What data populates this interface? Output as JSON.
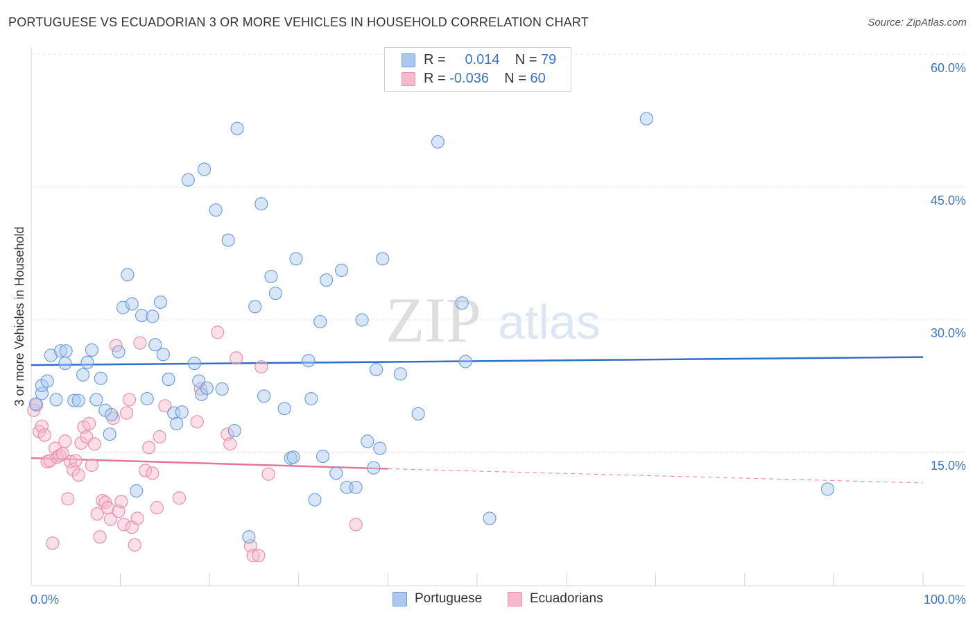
{
  "title": "PORTUGUESE VS ECUADORIAN 3 OR MORE VEHICLES IN HOUSEHOLD CORRELATION CHART",
  "source": "Source: ZipAtlas.com",
  "watermark": {
    "zip": "ZIP",
    "atlas": "atlas"
  },
  "colors": {
    "portuguese_fill": "#a9c7ef",
    "portuguese_stroke": "#6f9fdc",
    "portuguese_line": "#2f6fcc",
    "ecuadorian_fill": "#f6b8cc",
    "ecuadorian_stroke": "#ea8fac",
    "ecuadorian_line": "#e8739b",
    "axis_label": "#3b76c9"
  },
  "legend": {
    "rows": [
      {
        "r_label": "R =",
        "r_value": "0.014",
        "n_label": "N =",
        "n_value": "79"
      },
      {
        "r_label": "R =",
        "r_value": "-0.036",
        "n_label": "N =",
        "n_value": "60"
      }
    ]
  },
  "bottom_legend": {
    "portuguese": "Portuguese",
    "ecuadorians": "Ecuadorians"
  },
  "chart_data": {
    "type": "scatter",
    "title": "PORTUGUESE VS ECUADORIAN 3 OR MORE VEHICLES IN HOUSEHOLD CORRELATION CHART",
    "xlabel": "",
    "ylabel": "3 or more Vehicles in Household",
    "xlim": [
      0,
      100
    ],
    "ylim": [
      0,
      60
    ],
    "x_tick_labels": [
      "0.0%",
      "100.0%"
    ],
    "y_ticks": [
      15,
      30,
      45,
      60
    ],
    "y_tick_labels": [
      "15.0%",
      "30.0%",
      "45.0%",
      "60.0%"
    ],
    "grid": true,
    "series": [
      {
        "name": "Portuguese",
        "r": 0.014,
        "n": 79,
        "trend": {
          "x": [
            0,
            100
          ],
          "y": [
            24.9,
            25.8
          ]
        },
        "points": [
          [
            0.5,
            20.5
          ],
          [
            1.2,
            21.7
          ],
          [
            1.2,
            22.6
          ],
          [
            1.8,
            23.1
          ],
          [
            2.2,
            26.0
          ],
          [
            2.8,
            21.0
          ],
          [
            3.3,
            26.5
          ],
          [
            3.8,
            25.1
          ],
          [
            3.9,
            26.5
          ],
          [
            4.8,
            20.9
          ],
          [
            5.3,
            20.9
          ],
          [
            5.8,
            23.8
          ],
          [
            6.3,
            25.2
          ],
          [
            6.8,
            26.6
          ],
          [
            7.3,
            21.0
          ],
          [
            7.8,
            23.4
          ],
          [
            8.3,
            19.8
          ],
          [
            8.8,
            17.1
          ],
          [
            9.0,
            19.3
          ],
          [
            9.8,
            26.4
          ],
          [
            10.3,
            31.4
          ],
          [
            10.8,
            35.1
          ],
          [
            11.3,
            31.8
          ],
          [
            11.8,
            10.7
          ],
          [
            12.4,
            30.5
          ],
          [
            13.0,
            21.1
          ],
          [
            13.6,
            30.4
          ],
          [
            13.9,
            27.2
          ],
          [
            14.5,
            32.0
          ],
          [
            14.8,
            26.1
          ],
          [
            15.4,
            23.3
          ],
          [
            16.0,
            19.5
          ],
          [
            16.3,
            18.3
          ],
          [
            16.9,
            19.6
          ],
          [
            17.6,
            45.8
          ],
          [
            18.3,
            25.1
          ],
          [
            18.8,
            23.1
          ],
          [
            19.1,
            21.6
          ],
          [
            19.4,
            47.0
          ],
          [
            19.7,
            22.3
          ],
          [
            20.7,
            42.4
          ],
          [
            21.4,
            22.2
          ],
          [
            22.1,
            39.0
          ],
          [
            22.8,
            17.5
          ],
          [
            23.1,
            51.6
          ],
          [
            24.4,
            5.5
          ],
          [
            25.1,
            31.5
          ],
          [
            25.8,
            43.1
          ],
          [
            26.1,
            21.4
          ],
          [
            26.9,
            34.9
          ],
          [
            27.4,
            33.0
          ],
          [
            28.4,
            20.0
          ],
          [
            29.1,
            14.4
          ],
          [
            29.4,
            14.5
          ],
          [
            29.7,
            36.9
          ],
          [
            31.1,
            25.4
          ],
          [
            31.4,
            21.1
          ],
          [
            31.8,
            9.7
          ],
          [
            32.4,
            29.8
          ],
          [
            32.7,
            14.6
          ],
          [
            33.1,
            34.5
          ],
          [
            34.2,
            12.7
          ],
          [
            34.8,
            35.6
          ],
          [
            35.4,
            11.1
          ],
          [
            36.4,
            11.1
          ],
          [
            37.1,
            30.0
          ],
          [
            37.7,
            16.3
          ],
          [
            38.4,
            13.3
          ],
          [
            38.7,
            24.4
          ],
          [
            39.1,
            15.5
          ],
          [
            39.4,
            36.9
          ],
          [
            41.4,
            23.9
          ],
          [
            43.4,
            19.4
          ],
          [
            45.6,
            50.1
          ],
          [
            48.3,
            31.9
          ],
          [
            48.7,
            25.3
          ],
          [
            51.4,
            7.6
          ],
          [
            69.0,
            52.7
          ],
          [
            89.3,
            10.9
          ]
        ]
      },
      {
        "name": "Ecuadorians",
        "r": -0.036,
        "n": 60,
        "trend": {
          "x": [
            0,
            40
          ],
          "y": [
            14.4,
            13.2
          ]
        },
        "trend_dashed": {
          "x": [
            40,
            100
          ],
          "y": [
            13.2,
            11.6
          ]
        },
        "points": [
          [
            0.3,
            19.8
          ],
          [
            0.6,
            20.4
          ],
          [
            0.9,
            17.4
          ],
          [
            1.2,
            18.0
          ],
          [
            1.5,
            17.0
          ],
          [
            1.8,
            14.0
          ],
          [
            2.1,
            14.1
          ],
          [
            2.4,
            4.8
          ],
          [
            2.7,
            15.5
          ],
          [
            2.9,
            14.5
          ],
          [
            3.2,
            14.7
          ],
          [
            3.5,
            14.9
          ],
          [
            3.8,
            16.3
          ],
          [
            4.1,
            9.8
          ],
          [
            4.4,
            14.0
          ],
          [
            4.7,
            13.1
          ],
          [
            5.0,
            14.1
          ],
          [
            5.3,
            12.5
          ],
          [
            5.6,
            16.1
          ],
          [
            5.9,
            17.9
          ],
          [
            6.2,
            16.8
          ],
          [
            6.5,
            18.3
          ],
          [
            6.8,
            13.6
          ],
          [
            7.1,
            16.0
          ],
          [
            7.4,
            8.1
          ],
          [
            7.7,
            5.5
          ],
          [
            8.0,
            9.6
          ],
          [
            8.3,
            9.4
          ],
          [
            8.6,
            8.8
          ],
          [
            8.9,
            7.5
          ],
          [
            9.2,
            18.9
          ],
          [
            9.5,
            27.1
          ],
          [
            9.8,
            8.4
          ],
          [
            10.1,
            9.5
          ],
          [
            10.4,
            6.9
          ],
          [
            10.7,
            19.5
          ],
          [
            11.0,
            21.0
          ],
          [
            11.3,
            6.6
          ],
          [
            11.6,
            4.6
          ],
          [
            11.9,
            7.6
          ],
          [
            12.2,
            27.4
          ],
          [
            12.8,
            13.0
          ],
          [
            13.2,
            15.6
          ],
          [
            13.6,
            12.7
          ],
          [
            14.1,
            8.8
          ],
          [
            14.4,
            16.8
          ],
          [
            15.0,
            20.3
          ],
          [
            16.6,
            9.9
          ],
          [
            18.6,
            18.5
          ],
          [
            19.0,
            22.2
          ],
          [
            20.9,
            28.6
          ],
          [
            22.0,
            17.1
          ],
          [
            22.3,
            16.0
          ],
          [
            23.0,
            25.7
          ],
          [
            24.6,
            4.5
          ],
          [
            24.9,
            3.4
          ],
          [
            25.5,
            3.4
          ],
          [
            25.8,
            24.7
          ],
          [
            26.6,
            12.6
          ],
          [
            36.4,
            6.9
          ]
        ]
      }
    ]
  }
}
